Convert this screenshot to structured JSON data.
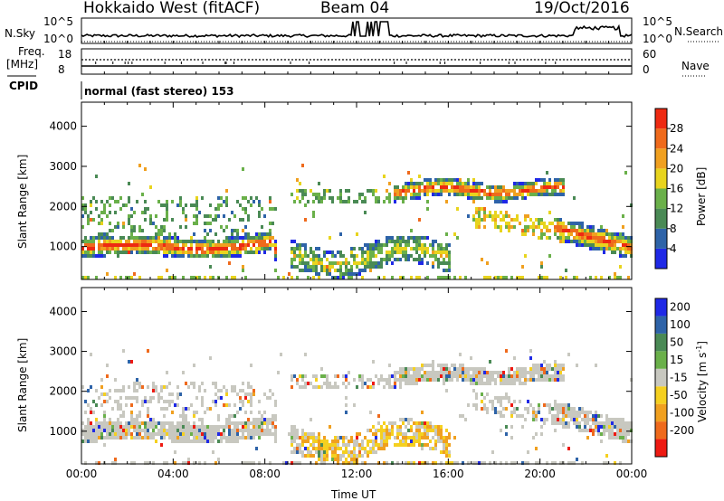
{
  "header": {
    "station": "Hokkaido West (fitACF)",
    "beam": "Beam 04",
    "date": "19/Oct/2016"
  },
  "panels": {
    "nsky": {
      "label": "N.Sky",
      "tick_hi": "10^5",
      "tick_lo": "10^0",
      "right_label": "N.Search",
      "right_hi": "10^5",
      "right_lo": "10^0"
    },
    "freq": {
      "label_top": "Freq.",
      "label_unit": "[MHz]",
      "tick_hi": "18",
      "tick_lo": "8",
      "right_label": "Nave",
      "right_hi": "60",
      "right_lo": "0"
    },
    "cpid": {
      "label": "CPID",
      "value": "normal (fast stereo) 153"
    }
  },
  "chart_data": [
    {
      "type": "heatmap",
      "name": "power",
      "ylabel": "Slant Range [km]",
      "yticks": [
        1000,
        2000,
        3000,
        4000
      ],
      "ylim": [
        180,
        4600
      ],
      "colorbar_label": "Power [dB]",
      "colorbar_ticks": [
        "4",
        "8",
        "12",
        "16",
        "20",
        "24",
        "28"
      ],
      "colors": [
        "#1f29e6",
        "#2e63a8",
        "#4a8a55",
        "#6ab04a",
        "#e8d41e",
        "#f0a020",
        "#ef6a1c",
        "#ee2a12"
      ],
      "structures": [
        {
          "feature": "main echo band",
          "x_hours": [
            0,
            8.5
          ],
          "range_km": [
            800,
            1400
          ],
          "power_db": [
            16,
            28
          ]
        },
        {
          "feature": "upper band",
          "x_hours": [
            14,
            21
          ],
          "range_km": [
            2200,
            2700
          ],
          "power_db": [
            16,
            26
          ]
        },
        {
          "feature": "lower band",
          "x_hours": [
            9,
            16
          ],
          "range_km": [
            300,
            1200
          ],
          "power_db": [
            8,
            20
          ]
        },
        {
          "feature": "late band",
          "x_hours": [
            21,
            24
          ],
          "range_km": [
            800,
            1600
          ],
          "power_db": [
            16,
            28
          ]
        }
      ]
    },
    {
      "type": "heatmap",
      "name": "velocity",
      "ylabel": "Slant Range [km]",
      "xlabel": "Time UT",
      "xticks": [
        "00:00",
        "04:00",
        "08:00",
        "12:00",
        "16:00",
        "20:00",
        "00:00"
      ],
      "yticks": [
        1000,
        2000,
        3000,
        4000
      ],
      "ylim": [
        180,
        4600
      ],
      "colorbar_label": "Velocity [m s",
      "colorbar_sup": "-1",
      "colorbar_label_end": "]",
      "colorbar_ticks": [
        "200",
        "100",
        "50",
        "15",
        "-15",
        "-50",
        "-100",
        "-200"
      ],
      "colors": [
        "#1f29e6",
        "#2e63a8",
        "#4a8a55",
        "#6ab04a",
        "#c8c8c0",
        "#f5d020",
        "#f0a020",
        "#ef6a1c",
        "#ee1a12"
      ],
      "structures": [
        {
          "feature": "ground scatter band",
          "x_hours": [
            0,
            9
          ],
          "range_km": [
            800,
            1400
          ],
          "velocity_ms": [
            -15,
            15
          ]
        },
        {
          "feature": "upper band",
          "x_hours": [
            14,
            21
          ],
          "range_km": [
            2200,
            2700
          ],
          "velocity_ms": [
            -15,
            15
          ]
        },
        {
          "feature": "lower band",
          "x_hours": [
            9,
            16
          ],
          "range_km": [
            400,
            1200
          ],
          "velocity_ms": [
            -50,
            -15
          ]
        }
      ]
    }
  ]
}
